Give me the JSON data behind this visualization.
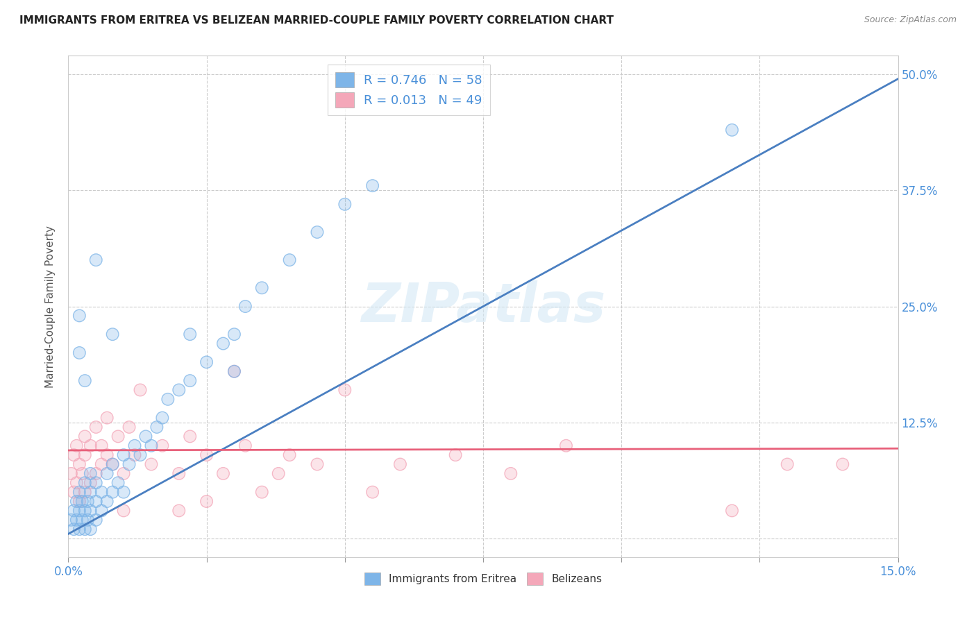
{
  "title": "IMMIGRANTS FROM ERITREA VS BELIZEAN MARRIED-COUPLE FAMILY POVERTY CORRELATION CHART",
  "source_text": "Source: ZipAtlas.com",
  "ylabel": "Married-Couple Family Poverty",
  "xlim": [
    0.0,
    0.15
  ],
  "ylim": [
    -0.02,
    0.52
  ],
  "xticks": [
    0.0,
    0.025,
    0.05,
    0.075,
    0.1,
    0.125,
    0.15
  ],
  "yticks": [
    0.0,
    0.125,
    0.25,
    0.375,
    0.5
  ],
  "yticklabels": [
    "",
    "12.5%",
    "25.0%",
    "37.5%",
    "50.0%"
  ],
  "blue_R": 0.746,
  "blue_N": 58,
  "pink_R": 0.013,
  "pink_N": 49,
  "blue_color": "#7eb5e8",
  "pink_color": "#f4a7b9",
  "blue_line_color": "#4a7fc1",
  "pink_line_color": "#e8607a",
  "legend_label_blue": "Immigrants from Eritrea",
  "legend_label_pink": "Belizeans",
  "watermark": "ZIPatlas",
  "blue_scatter_x": [
    0.0005,
    0.001,
    0.001,
    0.0015,
    0.0015,
    0.002,
    0.002,
    0.002,
    0.0025,
    0.0025,
    0.003,
    0.003,
    0.003,
    0.0035,
    0.0035,
    0.004,
    0.004,
    0.004,
    0.004,
    0.005,
    0.005,
    0.005,
    0.006,
    0.006,
    0.007,
    0.007,
    0.008,
    0.008,
    0.009,
    0.01,
    0.01,
    0.011,
    0.012,
    0.013,
    0.014,
    0.015,
    0.016,
    0.017,
    0.018,
    0.02,
    0.022,
    0.025,
    0.028,
    0.03,
    0.032,
    0.035,
    0.04,
    0.045,
    0.05,
    0.055,
    0.03,
    0.022,
    0.008,
    0.005,
    0.002,
    0.003,
    0.002,
    0.12
  ],
  "blue_scatter_y": [
    0.02,
    0.01,
    0.03,
    0.02,
    0.04,
    0.01,
    0.03,
    0.05,
    0.02,
    0.04,
    0.01,
    0.03,
    0.06,
    0.02,
    0.04,
    0.01,
    0.03,
    0.05,
    0.07,
    0.02,
    0.04,
    0.06,
    0.03,
    0.05,
    0.04,
    0.07,
    0.05,
    0.08,
    0.06,
    0.05,
    0.09,
    0.08,
    0.1,
    0.09,
    0.11,
    0.1,
    0.12,
    0.13,
    0.15,
    0.16,
    0.17,
    0.19,
    0.21,
    0.22,
    0.25,
    0.27,
    0.3,
    0.33,
    0.36,
    0.38,
    0.18,
    0.22,
    0.22,
    0.3,
    0.24,
    0.17,
    0.2,
    0.44
  ],
  "pink_scatter_x": [
    0.0005,
    0.001,
    0.001,
    0.0015,
    0.0015,
    0.002,
    0.002,
    0.0025,
    0.003,
    0.003,
    0.003,
    0.004,
    0.004,
    0.005,
    0.005,
    0.006,
    0.006,
    0.007,
    0.007,
    0.008,
    0.009,
    0.01,
    0.011,
    0.012,
    0.013,
    0.015,
    0.017,
    0.02,
    0.022,
    0.025,
    0.028,
    0.032,
    0.035,
    0.04,
    0.045,
    0.05,
    0.06,
    0.07,
    0.08,
    0.09,
    0.03,
    0.038,
    0.025,
    0.02,
    0.055,
    0.01,
    0.12,
    0.13,
    0.14
  ],
  "pink_scatter_y": [
    0.07,
    0.05,
    0.09,
    0.06,
    0.1,
    0.04,
    0.08,
    0.07,
    0.05,
    0.09,
    0.11,
    0.06,
    0.1,
    0.07,
    0.12,
    0.08,
    0.1,
    0.09,
    0.13,
    0.08,
    0.11,
    0.07,
    0.12,
    0.09,
    0.16,
    0.08,
    0.1,
    0.07,
    0.11,
    0.09,
    0.07,
    0.1,
    0.05,
    0.09,
    0.08,
    0.16,
    0.08,
    0.09,
    0.07,
    0.1,
    0.18,
    0.07,
    0.04,
    0.03,
    0.05,
    0.03,
    0.03,
    0.08,
    0.08
  ],
  "blue_trend_x": [
    0.0,
    0.15
  ],
  "blue_trend_y": [
    0.005,
    0.495
  ],
  "pink_trend_y": [
    0.095,
    0.097
  ]
}
